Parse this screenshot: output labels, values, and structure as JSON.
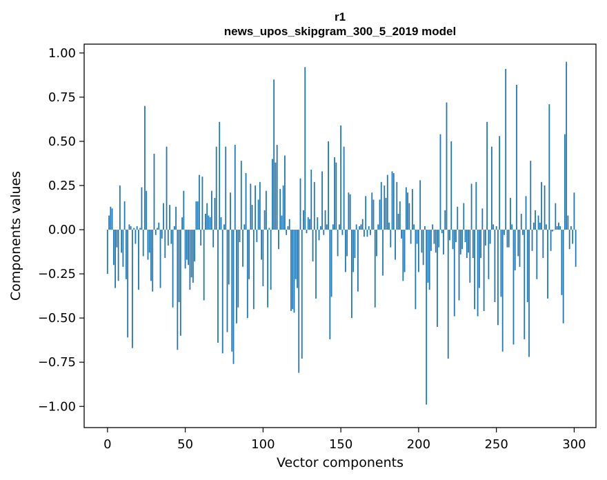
{
  "chart_data": {
    "type": "bar",
    "title": "r1",
    "subtitle": "news_upos_skipgram_300_5_2019 model",
    "xlabel": "Vector components",
    "ylabel": "Components values",
    "xlim": [
      -15,
      314
    ],
    "ylim": [
      -1.12,
      1.05
    ],
    "xticks": [
      0,
      50,
      100,
      150,
      200,
      250,
      300
    ],
    "yticks": [
      -1.0,
      -0.75,
      -0.5,
      -0.25,
      0.0,
      0.25,
      0.5,
      0.75,
      1.0
    ],
    "ytick_labels": [
      "−1.00",
      "−0.75",
      "−0.50",
      "−0.25",
      "0.00",
      "0.25",
      "0.50",
      "0.75",
      "1.00"
    ],
    "grid": false,
    "bar_color": "#1f77b4",
    "values": [
      -0.25,
      0.08,
      0.13,
      0.12,
      -0.2,
      -0.33,
      -0.1,
      -0.29,
      0.25,
      -0.13,
      -0.21,
      0.16,
      -0.28,
      -0.61,
      0.03,
      0.02,
      -0.67,
      0.01,
      -0.08,
      0.02,
      -0.34,
      0.01,
      0.24,
      -0.15,
      0.7,
      0.22,
      -0.17,
      -0.13,
      -0.29,
      -0.35,
      0.43,
      -0.03,
      0.01,
      0.04,
      -0.33,
      -0.05,
      0.15,
      -0.16,
      0.47,
      -0.09,
      0.14,
      -0.08,
      -0.44,
      0.02,
      0.13,
      -0.68,
      -0.41,
      -0.6,
      0.07,
      0.22,
      -0.22,
      -0.17,
      -0.2,
      -0.34,
      -0.27,
      -0.3,
      -0.18,
      0.16,
      0.16,
      0.31,
      -0.09,
      0.3,
      -0.4,
      0.09,
      0.15,
      0.08,
      0.07,
      0.22,
      -0.1,
      0.18,
      0.47,
      -0.64,
      0.61,
      0.07,
      -0.7,
      0.03,
      0.47,
      -0.58,
      -0.31,
      0.21,
      -0.69,
      -0.76,
      0.48,
      -0.53,
      -0.44,
      -0.07,
      0.39,
      -0.21,
      0.03,
      0.32,
      -0.5,
      -0.28,
      0.26,
      0.14,
      -0.45,
      0.25,
      -0.07,
      0.17,
      0.27,
      -0.17,
      -0.32,
      0.11,
      0.22,
      -0.44,
      0.01,
      -0.34,
      0.4,
      0.85,
      0.38,
      0.48,
      -0.11,
      0.23,
      0.08,
      0.25,
      0.42,
      -0.03,
      0.02,
      0.06,
      -0.46,
      -0.45,
      -0.47,
      -0.28,
      -0.33,
      -0.81,
      0.29,
      -0.73,
      0.11,
      0.92,
      -0.02,
      0.07,
      0.06,
      0.34,
      -0.18,
      0.27,
      -0.39,
      0.07,
      -0.06,
      0.02,
      0.33,
      -0.03,
      0.11,
      0.03,
      0.5,
      -0.62,
      -0.38,
      0.03,
      0.41,
      0.38,
      -0.15,
      0.03,
      0.59,
      -0.03,
      0.47,
      -0.24,
      -0.15,
      0.21,
      0.2,
      -0.5,
      -0.24,
      -0.16,
      0.03,
      -0.35,
      0.02,
      0.03,
      0.06,
      -0.04,
      0.19,
      -0.04,
      0.02,
      -0.03,
      0.21,
      0.17,
      -0.44,
      -0.15,
      0.03,
      0.17,
      0.27,
      -0.26,
      0.25,
      0.18,
      0.31,
      0.04,
      -0.1,
      0.33,
      0.32,
      -0.17,
      0.27,
      0.09,
      0.16,
      -0.05,
      -0.29,
      -0.24,
      0.24,
      0.21,
      0.15,
      -0.08,
      0.23,
      0.03,
      -0.45,
      -0.08,
      -0.24,
      0.28,
      -0.13,
      -0.2,
      0.02,
      -0.99,
      -0.3,
      -0.34,
      -0.12,
      0.03,
      -0.08,
      -0.13,
      -0.55,
      -0.1,
      0.54,
      -0.02,
      -0.14,
      0.11,
      0.72,
      -0.73,
      -0.06,
      0.5,
      -0.11,
      -0.49,
      -0.07,
      0.13,
      -0.4,
      -0.14,
      -0.11,
      0.15,
      -0.07,
      -0.16,
      -0.13,
      -0.3,
      0.26,
      -0.16,
      -0.45,
      0.27,
      -0.49,
      -0.33,
      -0.16,
      0.12,
      -0.46,
      -0.09,
      0.61,
      -0.28,
      -0.08,
      0.47,
      0.03,
      -0.41,
      0.02,
      -0.54,
      0.53,
      -0.38,
      -0.69,
      -0.03,
      0.91,
      -0.1,
      -0.1,
      0.18,
      0.03,
      -0.65,
      -0.23,
      0.82,
      -0.15,
      -0.21,
      0.09,
      -0.03,
      -0.62,
      0.19,
      -0.41,
      -0.72,
      0.39,
      -0.12,
      0.04,
      0.11,
      -0.28,
      0.08,
      0.04,
      0.27,
      -0.16,
      0.25,
      0.03,
      -0.39,
      0.71,
      -0.12,
      -0.01,
      0.0,
      0.15,
      0.02,
      0.04,
      0.02,
      -0.37,
      -0.53,
      0.54,
      0.95,
      0.08,
      -0.11,
      0.02,
      -0.08,
      0.21,
      -0.21
    ]
  }
}
